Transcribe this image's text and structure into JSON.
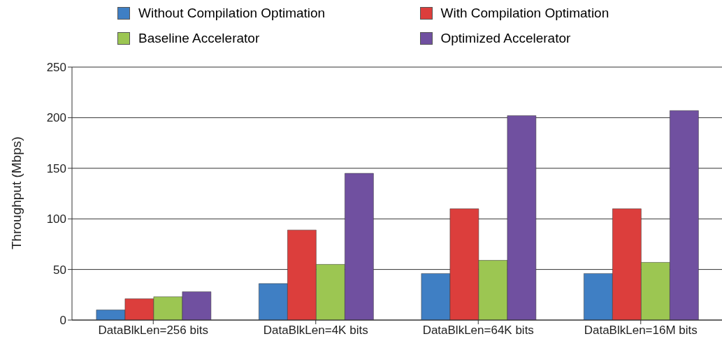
{
  "chart_data": {
    "type": "bar",
    "ylabel": "Throughput (Mbps)",
    "categories": [
      "DataBlkLen=256 bits",
      "DataBlkLen=4K bits",
      "DataBlkLen=64K bits",
      "DataBlkLen=16M bits"
    ],
    "series": [
      {
        "name": "Without Compilation Optimation",
        "color": "#3f7fc4",
        "values": [
          10,
          36,
          46,
          46
        ]
      },
      {
        "name": "With Compilation Optimation",
        "color": "#dc3e3c",
        "values": [
          21,
          89,
          110,
          110
        ]
      },
      {
        "name": "Baseline Accelerator",
        "color": "#9cc652",
        "values": [
          23,
          55,
          59,
          57
        ]
      },
      {
        "name": "Optimized Accelerator",
        "color": "#7050a0",
        "values": [
          28,
          145,
          202,
          207
        ]
      }
    ],
    "ylim": [
      0,
      250
    ],
    "yticks": [
      0,
      50,
      100,
      150,
      200,
      250
    ],
    "grid": "y",
    "legend": "top"
  }
}
